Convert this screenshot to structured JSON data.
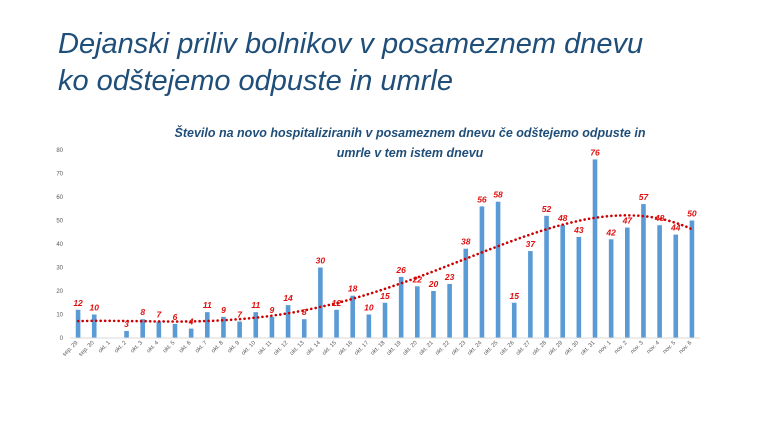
{
  "slide": {
    "title_line1": "Dejanski priliv bolnikov v posameznem dnevu",
    "title_line2": "ko odštejemo odpuste in umrle"
  },
  "chart_data": {
    "type": "bar",
    "title_line1": "Število na novo hospitaliziranih v posameznem dnevu če odštejemo odpuste in",
    "title_line2": "umrle v tem istem dnevu",
    "categories": [
      "sep. 29",
      "sep. 30",
      "okt. 1",
      "okt. 2",
      "okt. 3",
      "okt. 4",
      "okt. 5",
      "okt. 6",
      "okt. 7",
      "okt. 8",
      "okt. 9",
      "okt. 10",
      "okt. 11",
      "okt. 12",
      "okt. 13",
      "okt. 14",
      "okt. 15",
      "okt. 16",
      "okt. 17",
      "okt. 18",
      "okt. 19",
      "okt. 20",
      "okt. 21",
      "okt. 22",
      "okt. 23",
      "okt. 24",
      "okt. 25",
      "okt. 26",
      "okt. 27",
      "okt. 28",
      "okt. 29",
      "okt. 30",
      "okt. 31",
      "nov. 1",
      "nov. 2",
      "nov. 3",
      "nov. 4",
      "nov. 5",
      "nov. 6"
    ],
    "values": [
      12,
      10,
      0,
      3,
      8,
      7,
      6,
      4,
      11,
      9,
      7,
      11,
      9,
      14,
      8,
      30,
      12,
      18,
      10,
      15,
      26,
      22,
      20,
      23,
      38,
      56,
      58,
      15,
      37,
      52,
      48,
      43,
      76,
      42,
      47,
      57,
      48,
      44,
      50
    ],
    "labels": [
      "12",
      "10",
      "",
      "3",
      "8",
      "7",
      "6",
      "4",
      "11",
      "9",
      "7",
      "11",
      "9",
      "14",
      "8",
      "30",
      "12",
      "18",
      "10",
      "15",
      "26",
      "22",
      "20",
      "23",
      "38",
      "56",
      "58",
      "15",
      "37",
      "52",
      "48",
      "43",
      "76",
      "42",
      "47",
      "57",
      "48",
      "44",
      "50"
    ],
    "ylim": [
      0,
      80
    ],
    "yticks": [
      0,
      10,
      20,
      30,
      40,
      50,
      60,
      70,
      80
    ],
    "grid": false,
    "bar_color": "#5b9bd5",
    "trendline": {
      "kind": "polynomial",
      "style": "dotted",
      "color": "#cc0000"
    },
    "label_color": "#e01010"
  }
}
